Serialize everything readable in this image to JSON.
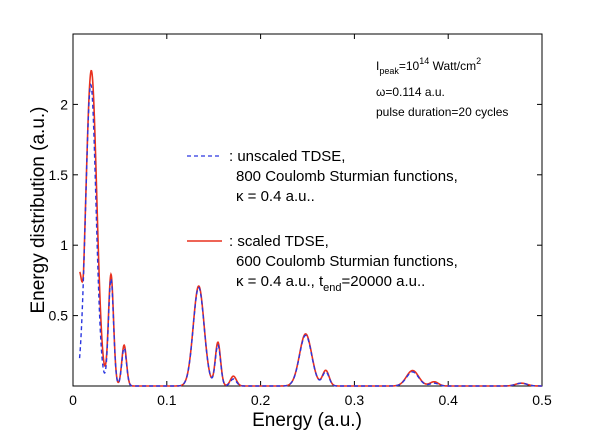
{
  "chart_data": {
    "type": "line",
    "xlabel": "Energy (a.u.)",
    "ylabel": "Energy distribution (a.u.)",
    "xlim": [
      0,
      0.5
    ],
    "ylim": [
      0,
      2.5
    ],
    "xticks": [
      0,
      0.1,
      0.2,
      0.3,
      0.4,
      0.5
    ],
    "xtick_labels": [
      "0",
      "0.1",
      "0.2",
      "0.3",
      "0.4",
      "0.5"
    ],
    "yticks": [
      0.5,
      1,
      1.5,
      2
    ],
    "ytick_labels": [
      "0.5",
      "1",
      "1.5",
      "2"
    ],
    "grid": false,
    "annotations": {
      "intensity_prefix": "I",
      "intensity_sub": "peak",
      "intensity_mid": "=10",
      "intensity_sup": "14",
      "intensity_suffix": " Watt/cm",
      "intensity_unit_sup": "2",
      "omega": "ω=0.114 a.u.",
      "pulse": "pulse duration=20 cycles"
    },
    "legend": {
      "placement": "center",
      "entries": [
        {
          "series": "unscaled",
          "line1": ": unscaled TDSE,",
          "line2": "800 Coulomb Sturmian functions,",
          "line3": "κ = 0.4 a.u.."
        },
        {
          "series": "scaled",
          "line1": ": scaled TDSE,",
          "line2": "600 Coulomb Sturmian functions,",
          "line3_main": "κ = 0.4 a.u., t",
          "line3_sub": "end",
          "line3_tail": "=20000 a.u.."
        }
      ]
    },
    "series": [
      {
        "id": "unscaled",
        "color": "#2a36e0",
        "dash": "dashed",
        "baseline": 0,
        "peaks": [
          {
            "center": 0.019,
            "height": 2.14,
            "width": 0.0055
          },
          {
            "center": 0.0405,
            "height": 0.76,
            "width": 0.0027
          },
          {
            "center": 0.0545,
            "height": 0.27,
            "width": 0.0025
          },
          {
            "center": 0.134,
            "height": 0.7,
            "width": 0.0058
          },
          {
            "center": 0.1545,
            "height": 0.29,
            "width": 0.0028
          },
          {
            "center": 0.171,
            "height": 0.05,
            "width": 0.0032
          },
          {
            "center": 0.248,
            "height": 0.36,
            "width": 0.0065
          },
          {
            "center": 0.2695,
            "height": 0.1,
            "width": 0.0035
          },
          {
            "center": 0.362,
            "height": 0.1,
            "width": 0.0065
          },
          {
            "center": 0.385,
            "height": 0.02,
            "width": 0.0045
          },
          {
            "center": 0.478,
            "height": 0.02,
            "width": 0.006
          }
        ]
      },
      {
        "id": "scaled",
        "color": "#e8311f",
        "dash": "solid",
        "baseline": 0,
        "peaks": [
          {
            "center": 0.0195,
            "height": 2.24,
            "width": 0.0058
          },
          {
            "center": 0.0405,
            "height": 0.79,
            "width": 0.0027
          },
          {
            "center": 0.0545,
            "height": 0.29,
            "width": 0.0025
          },
          {
            "center": 0.134,
            "height": 0.71,
            "width": 0.0058
          },
          {
            "center": 0.1545,
            "height": 0.31,
            "width": 0.0028
          },
          {
            "center": 0.171,
            "height": 0.07,
            "width": 0.0032
          },
          {
            "center": 0.248,
            "height": 0.37,
            "width": 0.0065
          },
          {
            "center": 0.2695,
            "height": 0.11,
            "width": 0.0035
          },
          {
            "center": 0.362,
            "height": 0.11,
            "width": 0.0065
          },
          {
            "center": 0.385,
            "height": 0.03,
            "width": 0.0045
          },
          {
            "center": 0.478,
            "height": 0.02,
            "width": 0.006
          }
        ],
        "start": [
          0.007,
          0.81
        ]
      }
    ]
  }
}
